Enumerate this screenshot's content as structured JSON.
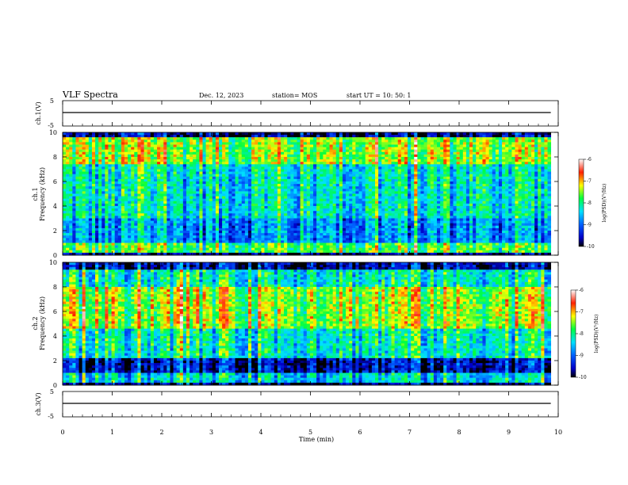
{
  "header": {
    "title": "VLF Spectra",
    "date": "Dec. 12, 2023",
    "station": "station= MOS",
    "start": "start  UT =  10: 50: 1"
  },
  "chart_data": [
    {
      "type": "line",
      "name": "ch1-waveform",
      "ylabel": "ch.1(V)",
      "ylim": [
        -5,
        5
      ],
      "yticks": [
        "5",
        "-5"
      ],
      "x": [
        0,
        10
      ],
      "y": [
        0,
        0
      ]
    },
    {
      "type": "heatmap",
      "name": "ch1-spectrogram",
      "ylabel_line1": "ch.1",
      "ylabel_line2": "Frequency (kHz)",
      "ylim": [
        0,
        10
      ],
      "yticks": [
        "0",
        "2",
        "4",
        "6",
        "8",
        "10"
      ],
      "xlim": [
        0,
        9.85
      ],
      "colorbar": {
        "label": "log(PSD)(V²/Hz)",
        "ticks": [
          "-6",
          "-7",
          "-8",
          "-9",
          "-10"
        ],
        "range": [
          -10,
          -6
        ]
      }
    },
    {
      "type": "heatmap",
      "name": "ch2-spectrogram",
      "ylabel_line1": "ch.2",
      "ylabel_line2": "Frequency (kHz)",
      "ylim": [
        0,
        10
      ],
      "yticks": [
        "0",
        "2",
        "4",
        "6",
        "8",
        "10"
      ],
      "xlim": [
        0,
        9.85
      ],
      "colorbar": {
        "label": "log(PSD)(V²/Hz)",
        "ticks": [
          "-6",
          "-7",
          "-8",
          "-9",
          "-10"
        ],
        "range": [
          -10,
          -6
        ]
      }
    },
    {
      "type": "line",
      "name": "ch3-waveform",
      "ylabel": "ch.3(V)",
      "ylim": [
        -5,
        5
      ],
      "yticks": [
        "5",
        "-5"
      ],
      "x": [
        0,
        10
      ],
      "y": [
        0,
        0
      ]
    }
  ],
  "xaxis": {
    "label": "Time  (min)",
    "ticks": [
      "0",
      "1",
      "2",
      "3",
      "4",
      "5",
      "6",
      "7",
      "8",
      "9",
      "10"
    ],
    "xlim": [
      0,
      10
    ]
  },
  "colors": {
    "background": "#ffffff",
    "axis": "#000000"
  }
}
